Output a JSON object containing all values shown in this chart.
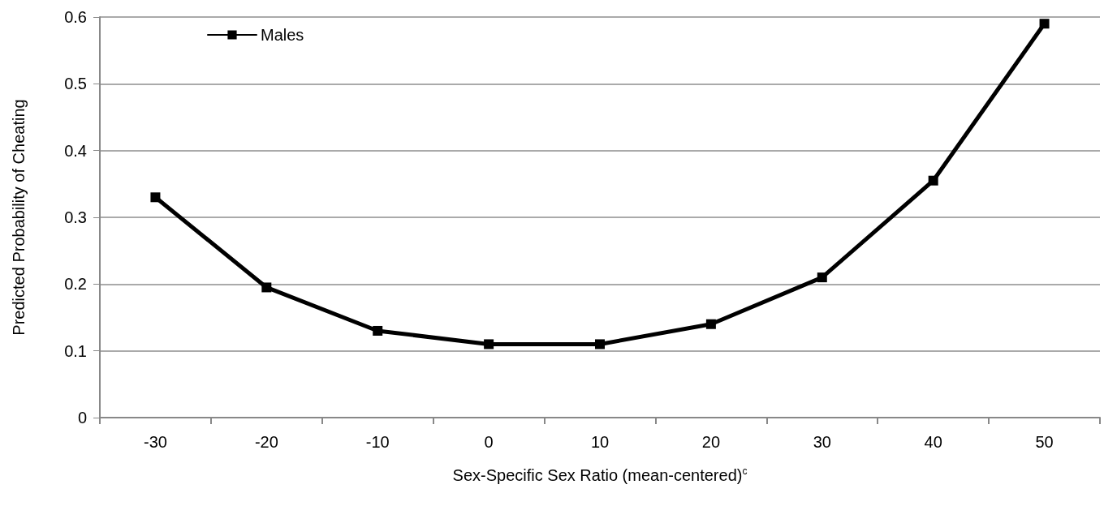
{
  "chart_data": {
    "type": "line",
    "xlabel": "Sex-Specific Sex Ratio (mean-centered)$^{c}$",
    "ylabel": "Predicted Probability of Cheating",
    "categories": [
      "-30",
      "-20",
      "-10",
      "0",
      "10",
      "20",
      "30",
      "40",
      "50"
    ],
    "series": [
      {
        "name": "Males",
        "color": "#000000",
        "values": [
          0.33,
          0.195,
          0.13,
          0.11,
          0.11,
          0.14,
          0.21,
          0.355,
          0.59
        ]
      }
    ],
    "ylim": [
      0,
      0.6
    ],
    "yticks": [
      0,
      0.1,
      0.2,
      0.3,
      0.4,
      0.5,
      0.6
    ],
    "grid": "y",
    "legend": "top left",
    "marker": "square",
    "line_style": "solid"
  }
}
